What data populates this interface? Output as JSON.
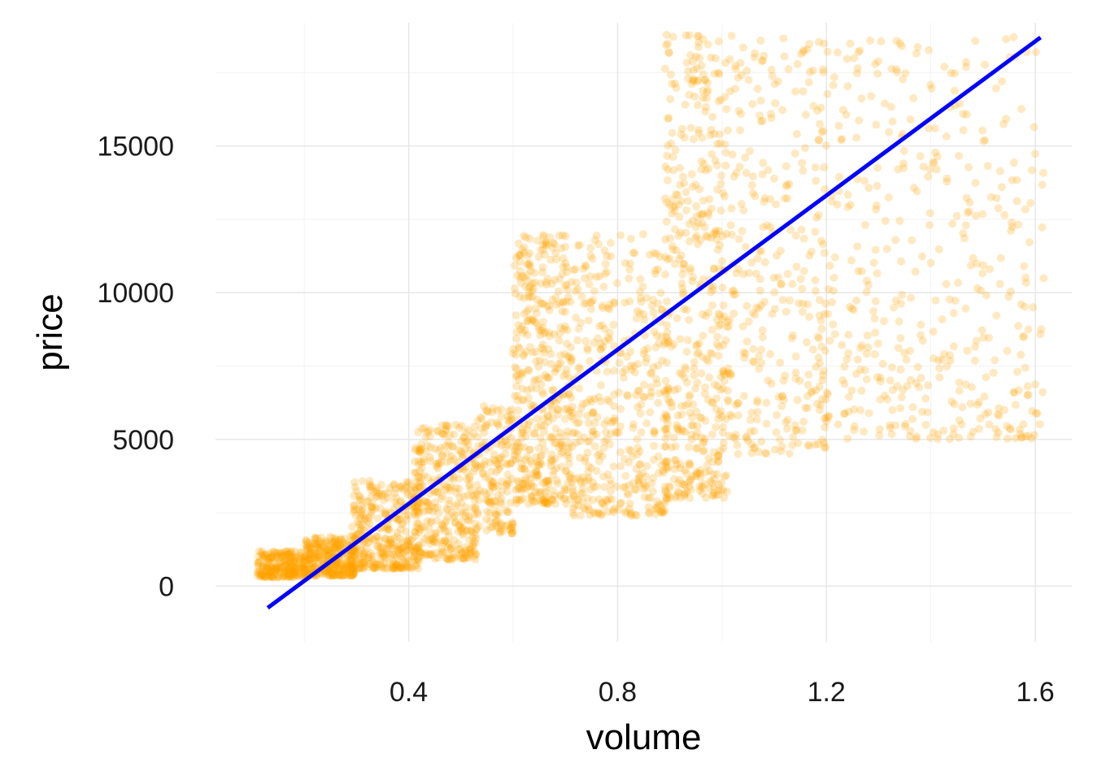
{
  "chart_data": {
    "type": "scatter",
    "title": "",
    "xlabel": "volume",
    "ylabel": "price",
    "xlim": [
      0.03,
      1.67
    ],
    "ylim": [
      -1900,
      19200
    ],
    "x_ticks": [
      0.4,
      0.8,
      1.2,
      1.6
    ],
    "x_tick_labels": [
      "0.4",
      "0.8",
      "1.2",
      "1.6"
    ],
    "x_minor_ticks": [
      0.2,
      0.6,
      1.0,
      1.4
    ],
    "y_ticks": [
      0,
      5000,
      10000,
      15000
    ],
    "y_tick_labels": [
      "0",
      "5000",
      "10000",
      "15000"
    ],
    "y_minor_ticks": [
      2500,
      7500,
      12500,
      17500
    ],
    "grid": true,
    "legend": "none",
    "point_color": "#FFA500",
    "point_opacity": 0.08,
    "line_color": "#0000FF",
    "series": [
      {
        "kind": "points",
        "clusters": [
          {
            "x_min": 0.11,
            "x_max": 0.2,
            "y_min": 300,
            "y_max": 1200,
            "n": 240
          },
          {
            "x_min": 0.2,
            "x_max": 0.3,
            "y_min": 350,
            "y_max": 1700,
            "n": 340
          },
          {
            "x_min": 0.29,
            "x_max": 0.42,
            "y_min": 600,
            "y_max": 3600,
            "n": 340
          },
          {
            "x_min": 0.41,
            "x_max": 0.53,
            "y_min": 900,
            "y_max": 5500,
            "n": 340
          },
          {
            "x_min": 0.53,
            "x_max": 0.6,
            "y_min": 1800,
            "y_max": 6200,
            "n": 160
          },
          {
            "x_min": 0.6,
            "x_max": 0.71,
            "y_min": 2800,
            "y_max": 12000,
            "n": 420
          },
          {
            "x_min": 0.71,
            "x_max": 0.9,
            "y_min": 2400,
            "y_max": 12000,
            "n": 420
          },
          {
            "x_min": 0.89,
            "x_max": 1.01,
            "y_min": 3000,
            "y_max": 18800,
            "n": 440
          },
          {
            "x_min": 1.01,
            "x_max": 1.2,
            "y_min": 4500,
            "y_max": 18800,
            "n": 300
          },
          {
            "x_min": 1.19,
            "x_max": 1.62,
            "y_min": 5000,
            "y_max": 18800,
            "n": 420
          }
        ]
      },
      {
        "kind": "regression_line",
        "x": [
          0.13,
          1.61
        ],
        "y": [
          -740,
          18700
        ]
      }
    ]
  }
}
